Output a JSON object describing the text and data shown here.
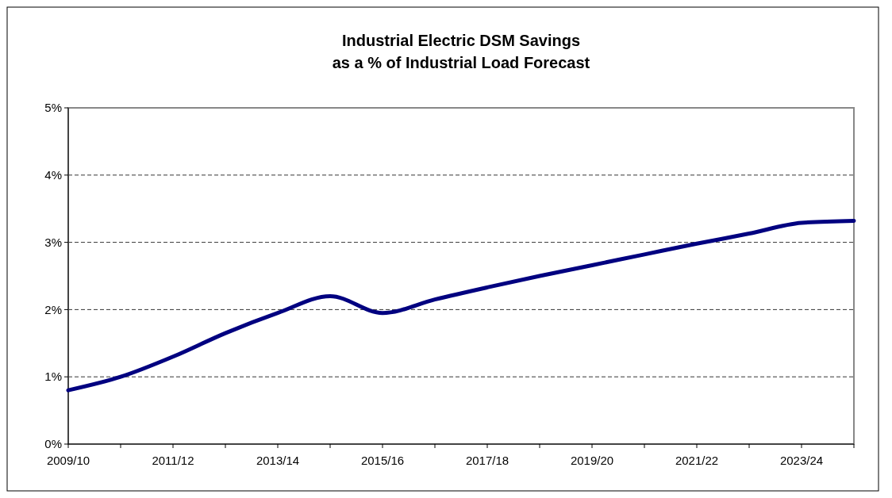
{
  "chart_data": {
    "type": "line",
    "title": "Industrial Electric DSM Savings\nas a % of Industrial Load Forecast",
    "categories": [
      "2009/10",
      null,
      "2011/12",
      null,
      "2013/14",
      null,
      "2015/16",
      null,
      "2017/18",
      null,
      "2019/20",
      null,
      "2021/22",
      null,
      "2023/24",
      null
    ],
    "series": [
      {
        "color": "#000080",
        "values": [
          0.8,
          1.0,
          1.3,
          1.65,
          1.95,
          2.2,
          1.95,
          2.15,
          2.33,
          2.5,
          2.66,
          2.82,
          2.98,
          3.13,
          3.29,
          3.32
        ]
      }
    ],
    "ylim": [
      0,
      5
    ],
    "yticks": [
      {
        "value": 0,
        "label": "0%"
      },
      {
        "value": 1,
        "label": "1%"
      },
      {
        "value": 2,
        "label": "2%"
      },
      {
        "value": 3,
        "label": "3%"
      },
      {
        "value": 4,
        "label": "4%"
      },
      {
        "value": 5,
        "label": "5%"
      }
    ],
    "grid": "y",
    "line_style": "solid",
    "marker": "none"
  }
}
